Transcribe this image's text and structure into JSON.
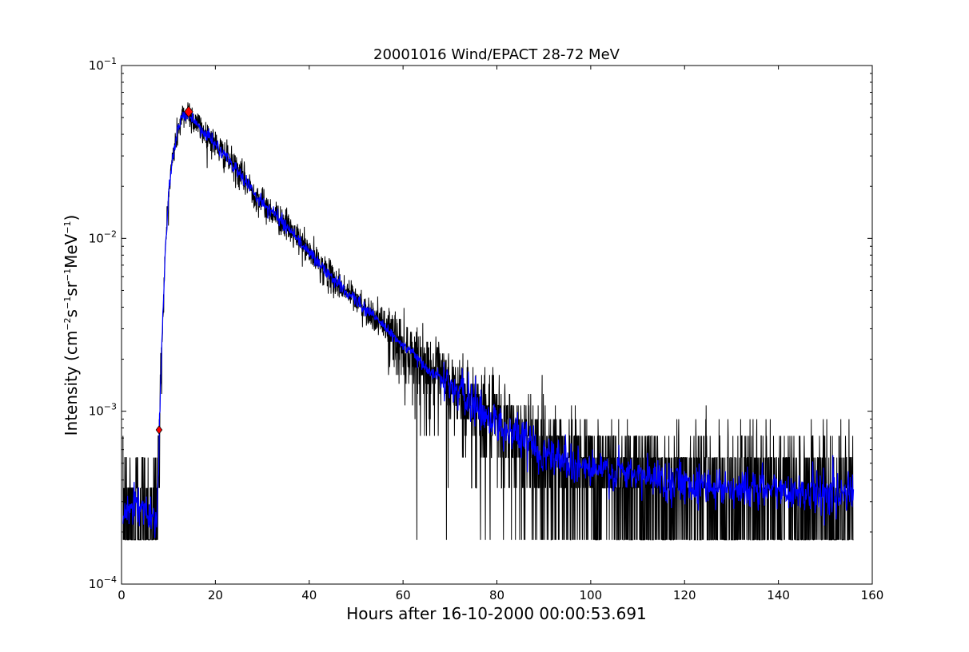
{
  "chart_data": {
    "type": "line",
    "title": "20001016 Wind/EPACT 28-72 MeV",
    "xlabel": "Hours after 16-10-2000 00:00:53.691",
    "ylabel": {
      "prefix": "Intensity (cm",
      "sup1": "−2",
      "s": "s",
      "sup2": "−1",
      "sr": "sr",
      "sup3": "−1",
      "mev": "MeV",
      "sup4": "−1",
      "suffix": ")"
    },
    "xlim": [
      0,
      160
    ],
    "ylim": [
      0.0001,
      0.1
    ],
    "yscale": "log",
    "grid": false,
    "x_ticks": [
      0,
      20,
      40,
      60,
      80,
      100,
      120,
      140,
      160
    ],
    "y_ticks": [
      {
        "value": 0.0001,
        "base": "10",
        "exp": "−4"
      },
      {
        "value": 0.001,
        "base": "10",
        "exp": "−3"
      },
      {
        "value": 0.01,
        "base": "10",
        "exp": "−2"
      },
      {
        "value": 0.1,
        "base": "10",
        "exp": "−1"
      }
    ],
    "series": [
      {
        "color": "#000000",
        "profile": [
          [
            0.3,
            0.00025
          ],
          [
            3,
            0.00028
          ],
          [
            6,
            0.00026
          ],
          [
            7.6,
            0.00027
          ],
          [
            8.1,
            0.0008
          ],
          [
            8.6,
            0.0025
          ],
          [
            9.3,
            0.008
          ],
          [
            10,
            0.018
          ],
          [
            10.8,
            0.028
          ],
          [
            12,
            0.042
          ],
          [
            13,
            0.05
          ],
          [
            14.2,
            0.055
          ],
          [
            15,
            0.05
          ],
          [
            17,
            0.043
          ],
          [
            20,
            0.035
          ],
          [
            25,
            0.024
          ],
          [
            30,
            0.016
          ],
          [
            35,
            0.012
          ],
          [
            40,
            0.0083
          ],
          [
            45,
            0.0058
          ],
          [
            50,
            0.0044
          ],
          [
            55,
            0.0033
          ],
          [
            60,
            0.0024
          ],
          [
            65,
            0.0018
          ],
          [
            70,
            0.0014
          ],
          [
            75,
            0.0011
          ],
          [
            80,
            0.00085
          ],
          [
            85,
            0.0007
          ],
          [
            90,
            0.00058
          ],
          [
            95,
            0.00052
          ],
          [
            100,
            0.00046
          ],
          [
            110,
            0.00042
          ],
          [
            120,
            0.00039
          ],
          [
            130,
            0.00036
          ],
          [
            140,
            0.00035
          ],
          [
            150,
            0.00034
          ],
          [
            156,
            0.00033
          ]
        ],
        "noise_floor": 0.00018,
        "noise_step": 0.00018
      },
      {
        "color": "#0000ff",
        "profile": [
          [
            0.3,
            0.00025
          ],
          [
            3,
            0.00028
          ],
          [
            6,
            0.00026
          ],
          [
            7.6,
            0.00027
          ],
          [
            8.1,
            0.0008
          ],
          [
            8.6,
            0.0025
          ],
          [
            9.3,
            0.008
          ],
          [
            10,
            0.018
          ],
          [
            10.8,
            0.028
          ],
          [
            12,
            0.042
          ],
          [
            13,
            0.05
          ],
          [
            14.2,
            0.054
          ],
          [
            15,
            0.05
          ],
          [
            17,
            0.043
          ],
          [
            20,
            0.035
          ],
          [
            25,
            0.024
          ],
          [
            30,
            0.016
          ],
          [
            35,
            0.012
          ],
          [
            40,
            0.0083
          ],
          [
            45,
            0.0058
          ],
          [
            50,
            0.0044
          ],
          [
            55,
            0.0033
          ],
          [
            60,
            0.0024
          ],
          [
            65,
            0.0018
          ],
          [
            70,
            0.0014
          ],
          [
            75,
            0.0011
          ],
          [
            80,
            0.00085
          ],
          [
            85,
            0.0007
          ],
          [
            90,
            0.00058
          ],
          [
            95,
            0.00052
          ],
          [
            100,
            0.00046
          ],
          [
            110,
            0.00042
          ],
          [
            120,
            0.00039
          ],
          [
            130,
            0.00036
          ],
          [
            140,
            0.00035
          ],
          [
            150,
            0.00034
          ],
          [
            156,
            0.00033
          ]
        ]
      }
    ],
    "markers": [
      {
        "x": 8.0,
        "y": 0.00078,
        "shape": "diamond",
        "color": "#ff0000",
        "size": "small"
      },
      {
        "x": 14.3,
        "y": 0.054,
        "shape": "diamond",
        "color": "#ff0000",
        "size": "large"
      }
    ]
  }
}
